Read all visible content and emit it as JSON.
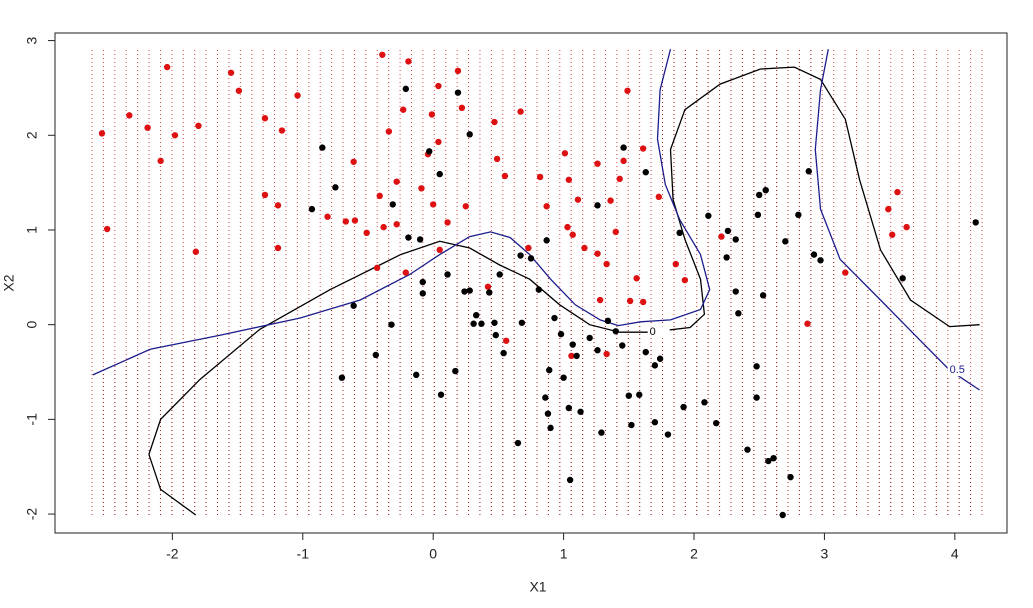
{
  "chart_data": {
    "type": "scatter",
    "x_label": "X1",
    "y_label": "X2",
    "xlim": [
      -2.9,
      4.4
    ],
    "ylim": [
      -2.2,
      3.08
    ],
    "xticks": [
      -2,
      -1,
      0,
      1,
      2,
      3,
      4
    ],
    "yticks": [
      -2,
      -1,
      0,
      1,
      2,
      3
    ],
    "background_grid": true,
    "series": [
      {
        "color": "#dd1111",
        "x": [
          -2.54,
          -2.5,
          -2.33,
          -2.19,
          -2.09,
          -2.04,
          -1.98,
          -1.82,
          -1.8,
          -1.55,
          -1.49,
          -1.29,
          -1.29,
          -1.19,
          -1.19,
          -1.16,
          -1.04,
          -0.81,
          -0.67,
          -0.61,
          -0.6,
          -0.51,
          -0.43,
          -0.41,
          -0.39,
          -0.38,
          -0.34,
          -0.28,
          -0.28,
          -0.23,
          -0.21,
          -0.19,
          -0.09,
          -0.04,
          -0.01,
          0.0,
          0.04,
          0.04,
          0.05,
          0.11,
          0.19,
          0.22,
          0.25,
          0.42,
          0.47,
          0.49,
          0.55,
          0.56,
          0.67,
          0.73,
          0.82,
          0.87,
          1.01,
          1.03,
          1.04,
          1.07,
          1.06,
          1.11,
          1.16,
          1.26,
          1.26,
          1.28,
          1.33,
          1.33,
          1.36,
          1.4,
          1.43,
          1.46,
          1.49,
          1.51,
          1.56,
          1.61,
          1.61,
          1.73,
          1.86,
          1.93,
          2.21,
          2.87,
          3.16,
          3.49,
          3.52,
          3.56,
          3.63
        ],
        "y": [
          2.02,
          1.01,
          2.21,
          2.08,
          1.73,
          2.72,
          2.0,
          0.77,
          2.1,
          2.66,
          2.47,
          2.18,
          1.37,
          1.26,
          0.81,
          2.05,
          2.42,
          1.14,
          1.09,
          1.72,
          1.1,
          0.97,
          0.6,
          1.36,
          2.85,
          1.03,
          2.04,
          1.51,
          1.06,
          2.27,
          0.55,
          2.78,
          1.44,
          1.8,
          2.22,
          1.27,
          1.93,
          2.52,
          0.79,
          1.08,
          2.68,
          2.29,
          1.25,
          0.4,
          2.14,
          1.75,
          1.57,
          -0.17,
          2.25,
          0.81,
          1.56,
          1.25,
          1.81,
          1.03,
          1.53,
          0.95,
          -0.33,
          1.32,
          0.81,
          1.7,
          0.75,
          0.26,
          -0.31,
          0.64,
          1.31,
          0.98,
          1.54,
          1.73,
          2.47,
          0.25,
          0.49,
          1.86,
          0.24,
          1.35,
          0.64,
          0.47,
          0.93,
          0.01,
          0.55,
          1.22,
          0.95,
          1.4,
          1.03
        ]
      },
      {
        "color": "#000000",
        "x": [
          -0.93,
          -0.85,
          -0.75,
          -0.7,
          -0.61,
          -0.44,
          -0.32,
          -0.31,
          -0.21,
          -0.19,
          -0.13,
          -0.1,
          -0.08,
          -0.08,
          -0.03,
          0.05,
          0.06,
          0.11,
          0.17,
          0.19,
          0.24,
          0.28,
          0.28,
          0.31,
          0.33,
          0.37,
          0.43,
          0.47,
          0.48,
          0.51,
          0.54,
          0.65,
          0.67,
          0.68,
          0.75,
          0.81,
          0.86,
          0.87,
          0.88,
          0.89,
          0.9,
          0.93,
          0.98,
          1.0,
          1.04,
          1.05,
          1.07,
          1.1,
          1.13,
          1.2,
          1.26,
          1.26,
          1.29,
          1.34,
          1.4,
          1.45,
          1.46,
          1.5,
          1.52,
          1.58,
          1.63,
          1.63,
          1.7,
          1.74,
          1.8,
          1.7,
          1.89,
          1.92,
          2.08,
          2.11,
          2.17,
          2.25,
          2.26,
          2.32,
          2.34,
          2.41,
          2.48,
          2.48,
          2.49,
          2.5,
          2.53,
          2.55,
          2.57,
          2.61,
          2.68,
          2.7,
          2.74,
          2.8,
          2.88,
          2.92,
          2.97,
          3.6,
          4.16,
          2.32
        ],
        "y": [
          1.22,
          1.87,
          1.45,
          -0.56,
          0.2,
          -0.32,
          0.0,
          1.27,
          2.49,
          0.92,
          -0.53,
          0.9,
          0.45,
          0.33,
          1.83,
          1.59,
          -0.74,
          0.53,
          -0.49,
          2.45,
          0.35,
          2.01,
          0.36,
          0.01,
          0.1,
          0.01,
          0.34,
          0.02,
          -0.11,
          0.53,
          -0.3,
          -1.25,
          0.73,
          0.02,
          0.7,
          0.37,
          -0.77,
          0.89,
          -0.94,
          -0.48,
          -1.09,
          0.07,
          -0.1,
          -0.56,
          -0.88,
          -1.64,
          -0.21,
          -0.33,
          -0.92,
          -0.14,
          -0.27,
          1.26,
          -1.14,
          0.04,
          -0.07,
          -0.22,
          1.87,
          -0.75,
          -1.06,
          -0.74,
          -0.29,
          1.61,
          -0.43,
          -0.36,
          -1.16,
          -1.03,
          0.97,
          -0.87,
          -0.82,
          1.15,
          -1.04,
          0.71,
          0.99,
          0.35,
          0.12,
          -1.32,
          -0.44,
          -0.77,
          1.16,
          1.37,
          0.31,
          1.42,
          -1.44,
          -1.41,
          -2.01,
          0.88,
          -1.61,
          1.16,
          1.62,
          0.74,
          0.68,
          0.49,
          1.08,
          0.9
        ]
      }
    ],
    "contours": [
      {
        "level": 0,
        "color": "#000000",
        "x": [
          -1.82,
          -2.09,
          -2.18,
          -2.09,
          -1.79,
          -1.33,
          -0.79,
          -0.25,
          0.05,
          0.28,
          0.51,
          0.74,
          0.97,
          1.2,
          1.43,
          1.66,
          1.97,
          2.08,
          2.05,
          1.93,
          1.84,
          1.82,
          1.93,
          2.2,
          2.51,
          2.77,
          2.97,
          3.16,
          3.27,
          3.43,
          3.66,
          3.96,
          4.19
        ],
        "y": [
          -2.01,
          -1.74,
          -1.37,
          -1.0,
          -0.58,
          -0.05,
          0.37,
          0.74,
          0.88,
          0.81,
          0.63,
          0.48,
          0.21,
          0.0,
          -0.08,
          -0.08,
          -0.03,
          0.11,
          0.48,
          0.9,
          1.32,
          1.85,
          2.27,
          2.54,
          2.7,
          2.72,
          2.59,
          2.17,
          1.53,
          0.79,
          0.26,
          -0.02,
          0.0
        ]
      },
      {
        "level": 0.5,
        "color": "#1c1c8c",
        "x": [
          -2.61,
          -2.17,
          -1.63,
          -1.02,
          -0.56,
          -0.18,
          0.05,
          0.28,
          0.44,
          0.59,
          0.74,
          0.9,
          1.09,
          1.28,
          1.42,
          1.59,
          1.82,
          2.05,
          2.12,
          2.05,
          1.89,
          1.78,
          1.72,
          1.74,
          1.82,
          null,
          3.03,
          2.97,
          2.93,
          2.97,
          3.12,
          3.43,
          3.73,
          3.96,
          4.19
        ],
        "y": [
          -0.53,
          -0.26,
          -0.11,
          0.07,
          0.26,
          0.53,
          0.74,
          0.93,
          0.98,
          0.92,
          0.74,
          0.48,
          0.21,
          0.05,
          -0.01,
          0.03,
          0.05,
          0.16,
          0.37,
          0.74,
          1.11,
          1.48,
          1.96,
          2.48,
          2.91,
          null,
          2.91,
          2.48,
          1.85,
          1.22,
          0.69,
          0.26,
          -0.16,
          -0.48,
          -0.69
        ]
      }
    ]
  }
}
